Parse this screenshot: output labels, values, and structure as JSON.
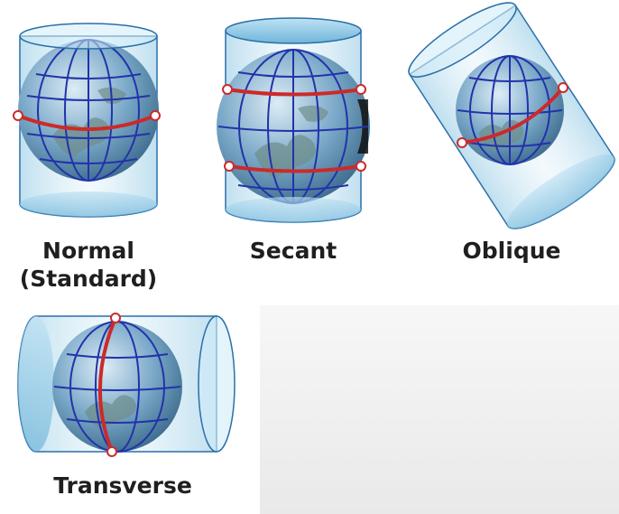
{
  "projections": [
    {
      "id": "normal",
      "label_line1": "Normal",
      "label_line2": "(Standard)"
    },
    {
      "id": "secant",
      "label_line1": "Secant"
    },
    {
      "id": "oblique",
      "label_line1": "Oblique"
    },
    {
      "id": "transverse",
      "label_line1": "Transverse"
    }
  ],
  "colors": {
    "cylinder_fill": "#9fd2ea",
    "cylinder_edge": "#2a6fa8",
    "grid_line": "#2233aa",
    "tangent_line": "#cc2a2a",
    "globe_ocean": "#5b8fb4",
    "land": "#6d8c8a"
  }
}
